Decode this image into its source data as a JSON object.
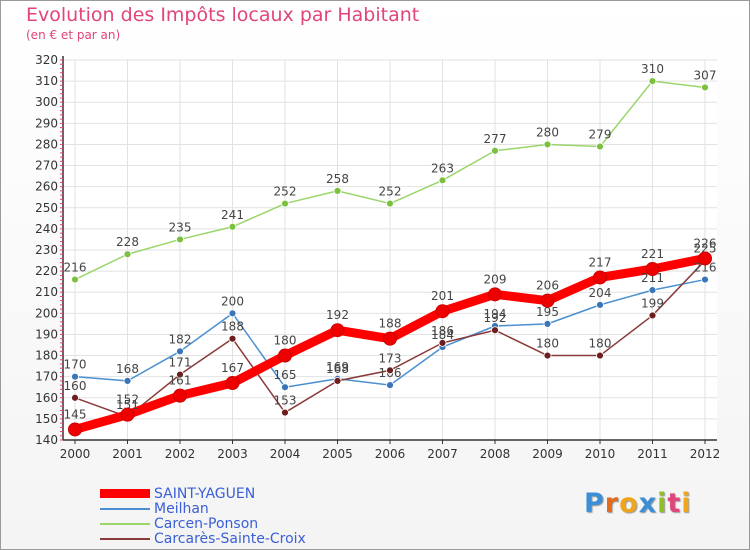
{
  "title": "Evolution des Impôts locaux par Habitant",
  "subtitle": "(en € et par an)",
  "logo": {
    "text": "Proxiti",
    "letter_colors": [
      "#3b8fd6",
      "#e46a1e",
      "#f0a51f",
      "#3b8fd6",
      "#8fbf23",
      "#e0457b",
      "#f0a51f"
    ]
  },
  "chart_data": {
    "type": "line",
    "title": "Evolution des Impôts locaux par Habitant",
    "subtitle": "(en € et par an)",
    "xlabel": "",
    "ylabel": "",
    "x": [
      2000,
      2001,
      2002,
      2003,
      2004,
      2005,
      2006,
      2007,
      2008,
      2009,
      2010,
      2011,
      2012
    ],
    "x_tick_labels": [
      "2000",
      "2001",
      "2002",
      "2003",
      "2004",
      "2005",
      "2006",
      "2007",
      "2008",
      "2009",
      "2010",
      "2011",
      "2012"
    ],
    "ylim": [
      140,
      320
    ],
    "y_ticks": [
      140,
      150,
      160,
      170,
      180,
      190,
      200,
      210,
      220,
      230,
      240,
      250,
      260,
      270,
      280,
      290,
      300,
      310,
      320
    ],
    "y_tick_labels": [
      "140",
      "150",
      "160",
      "170",
      "180",
      "190",
      "200",
      "210",
      "220",
      "230",
      "240",
      "250",
      "260",
      "270",
      "280",
      "290",
      "300",
      "310",
      "320"
    ],
    "grid": true,
    "legend_position": "bottom-left",
    "series": [
      {
        "name": "Meilhan",
        "color": "#4a90d0",
        "marker": "#3a75b8",
        "values": [
          170,
          168,
          182,
          200,
          165,
          169,
          166,
          184,
          194,
          195,
          204,
          211,
          216
        ],
        "labels": [
          "170",
          "168",
          "182",
          "200",
          "165",
          "169",
          "166",
          "184",
          "194",
          "195",
          "204",
          "211",
          "216"
        ],
        "bold": false
      },
      {
        "name": "Carcen-Ponson",
        "color": "#9ad66a",
        "marker": "#7cc03f",
        "values": [
          216,
          228,
          235,
          241,
          252,
          258,
          252,
          263,
          277,
          280,
          279,
          310,
          307
        ],
        "labels": [
          "216",
          "228",
          "235",
          "241",
          "252",
          "258",
          "252",
          "263",
          "277",
          "280",
          "279",
          "310",
          "307"
        ],
        "bold": false
      },
      {
        "name": "Carcarès-Sainte-Croix",
        "color": "#8a3a3a",
        "marker": "#6e1e1e",
        "values": [
          160,
          151,
          171,
          188,
          153,
          168,
          173,
          186,
          192,
          180,
          180,
          199,
          225
        ],
        "labels": [
          "160",
          "151",
          "171",
          "188",
          "153",
          "168",
          "173",
          "186",
          "192",
          "180",
          "180",
          "199",
          "225"
        ],
        "bold": false
      },
      {
        "name": "SAINT-YAGUEN",
        "color": "#ff0000",
        "marker": "#ee0000",
        "values": [
          145,
          152,
          161,
          167,
          180,
          192,
          188,
          201,
          209,
          206,
          217,
          221,
          226
        ],
        "labels": [
          "145",
          "152",
          "161",
          "167",
          "180",
          "192",
          "188",
          "201",
          "209",
          "206",
          "217",
          "221",
          "226"
        ],
        "bold": true
      }
    ],
    "legend": [
      {
        "name": "SAINT-YAGUEN",
        "color": "#ff0000"
      },
      {
        "name": "Meilhan",
        "color": "#4a90d0"
      },
      {
        "name": "Carcen-Ponson",
        "color": "#9ad66a"
      },
      {
        "name": "Carcarès-Sainte-Croix",
        "color": "#8a3a3a"
      }
    ]
  }
}
